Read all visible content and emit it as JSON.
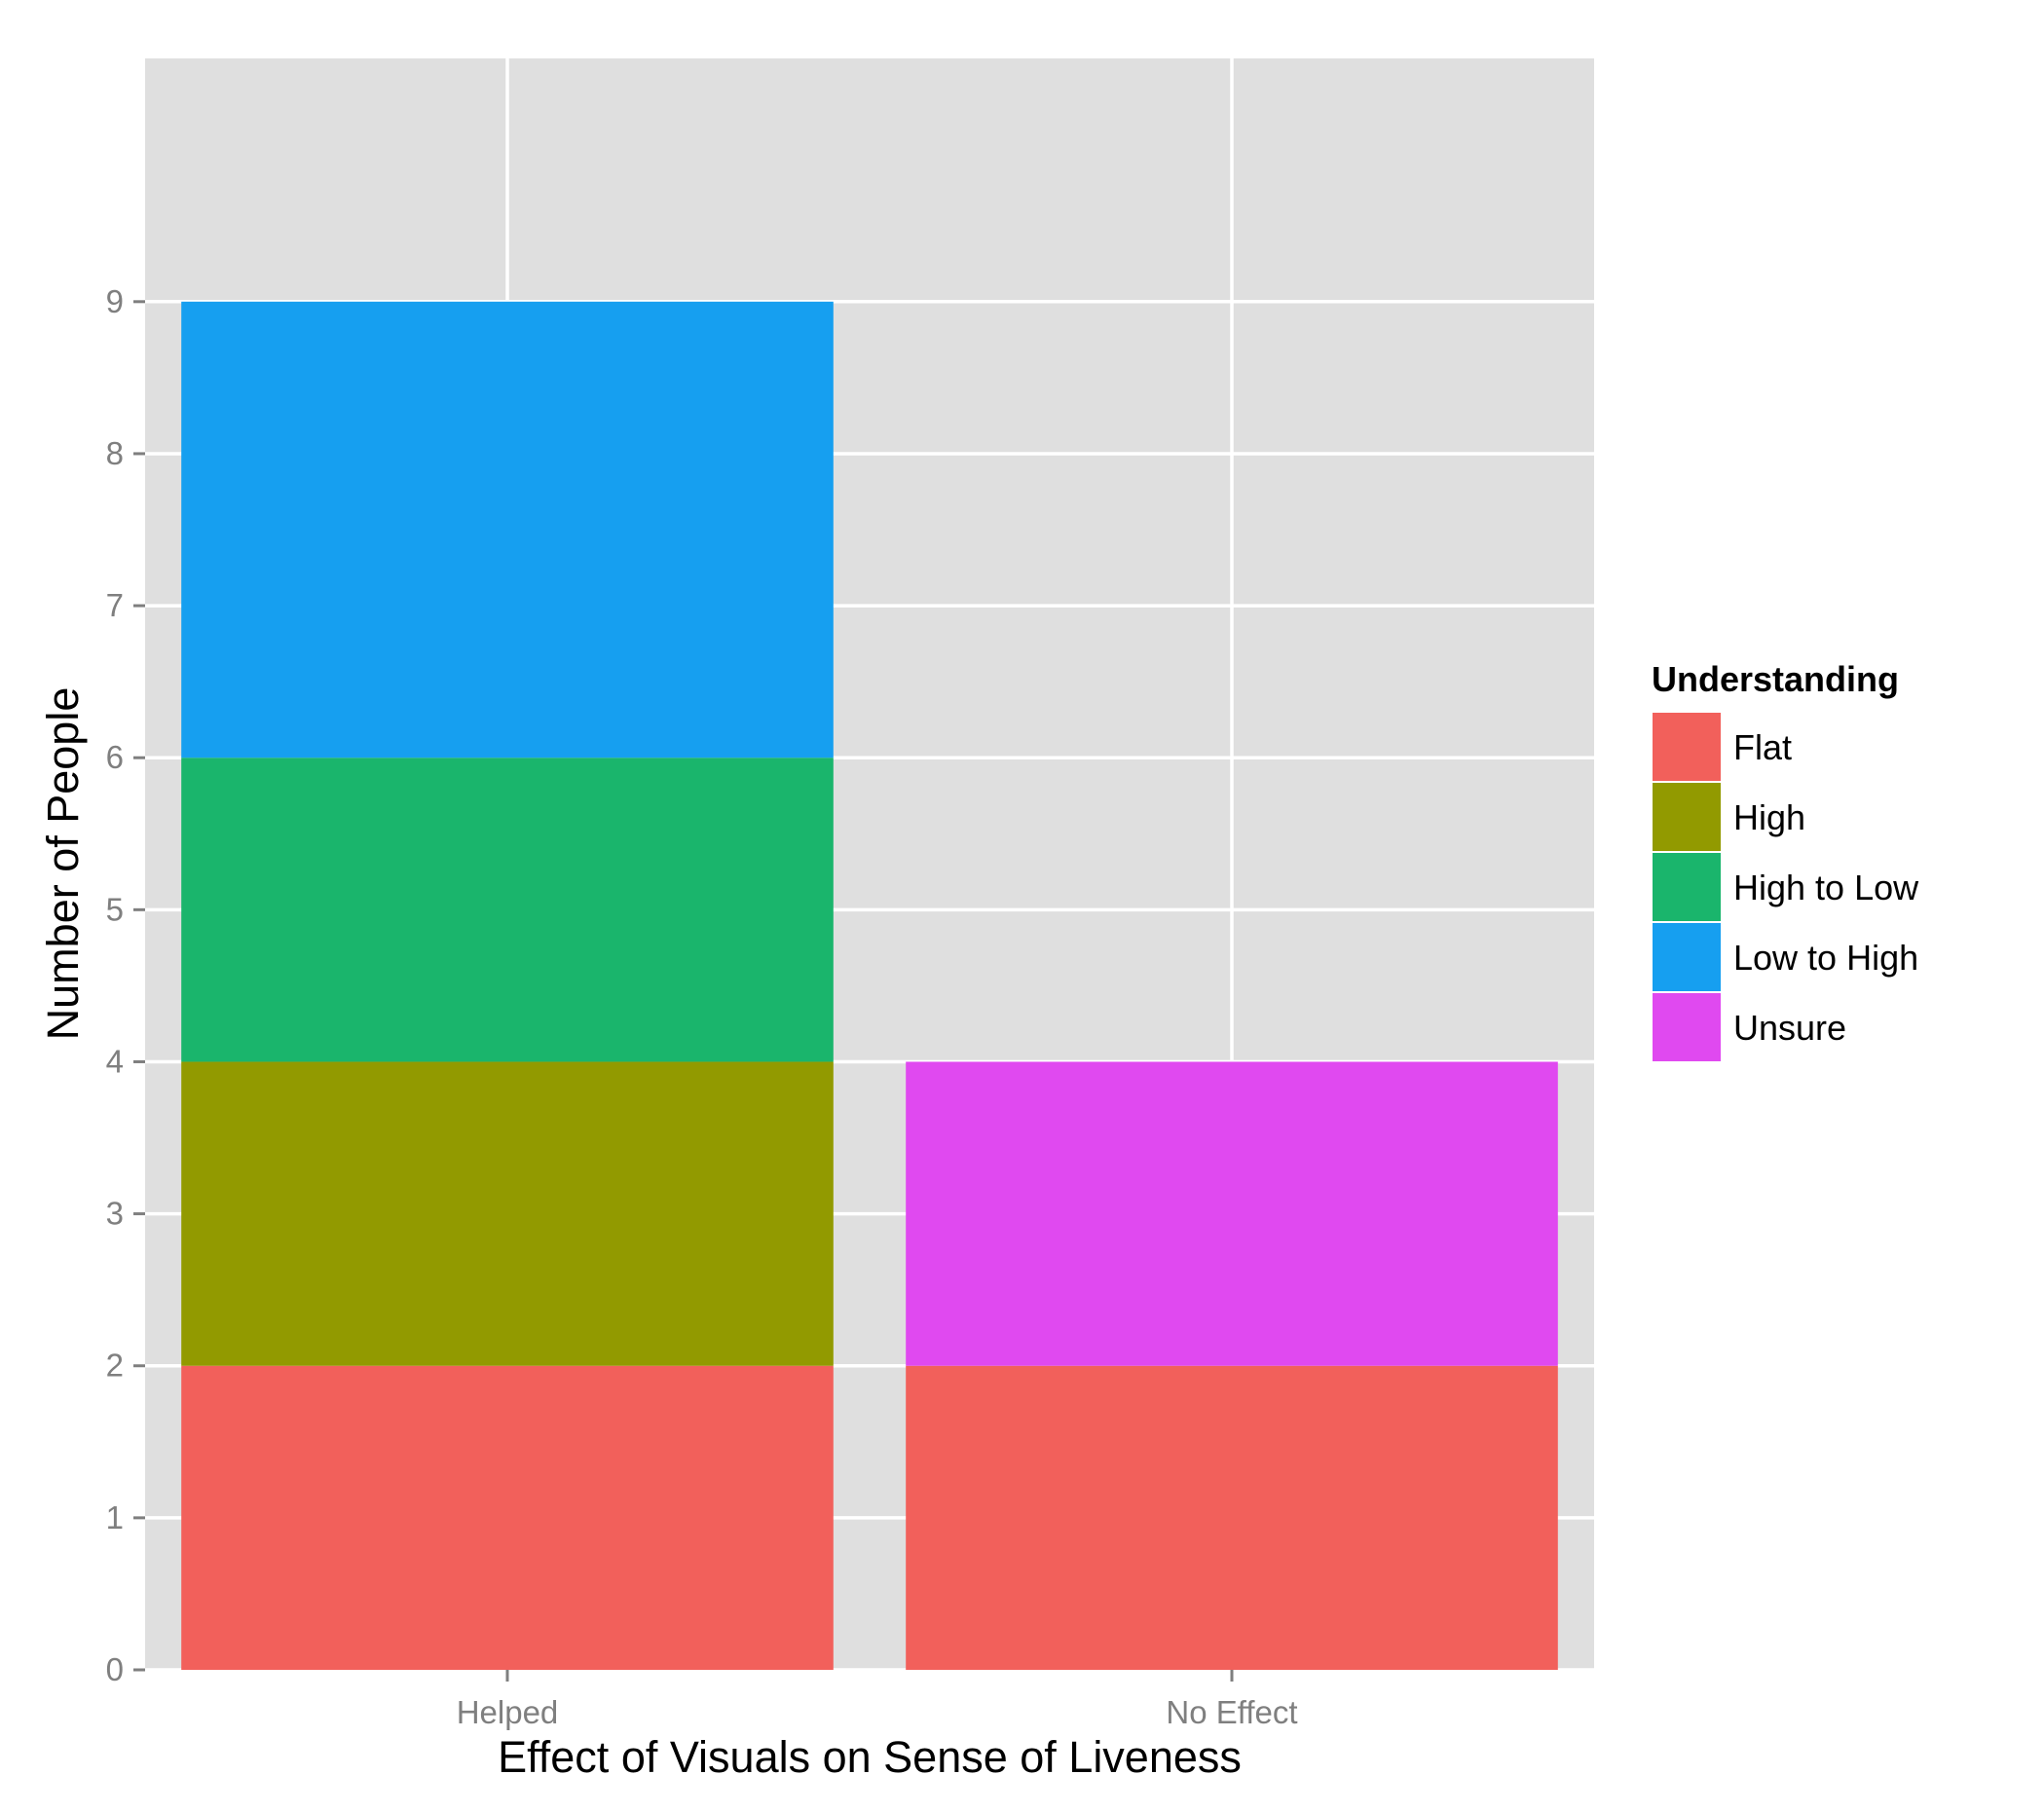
{
  "chart_data": {
    "type": "bar",
    "stacked": true,
    "title": "",
    "xlabel": "Effect of Visuals on Sense of Liveness",
    "ylabel": "Number of People",
    "categories": [
      "Helped",
      "No Effect"
    ],
    "yticks": [
      0,
      1,
      2,
      3,
      4,
      5,
      6,
      7,
      8,
      9
    ],
    "ylim": [
      0,
      10.6
    ],
    "grid": true,
    "legend": {
      "title": "Understanding",
      "placement": "right"
    },
    "series": [
      {
        "name": "Flat",
        "color": "#F2605B",
        "values": [
          2,
          2
        ]
      },
      {
        "name": "High",
        "color": "#929A00",
        "values": [
          2,
          0
        ]
      },
      {
        "name": "High to Low",
        "color": "#1AB56C",
        "values": [
          2,
          0
        ]
      },
      {
        "name": "Low to High",
        "color": "#169FF0",
        "values": [
          3,
          0
        ]
      },
      {
        "name": "Unsure",
        "color": "#E049F0",
        "values": [
          0,
          2
        ]
      }
    ],
    "colors": {
      "panel_background": "#DFDFDF",
      "grid": "#FFFFFF",
      "tick_mark": "#7f7f7f"
    }
  }
}
